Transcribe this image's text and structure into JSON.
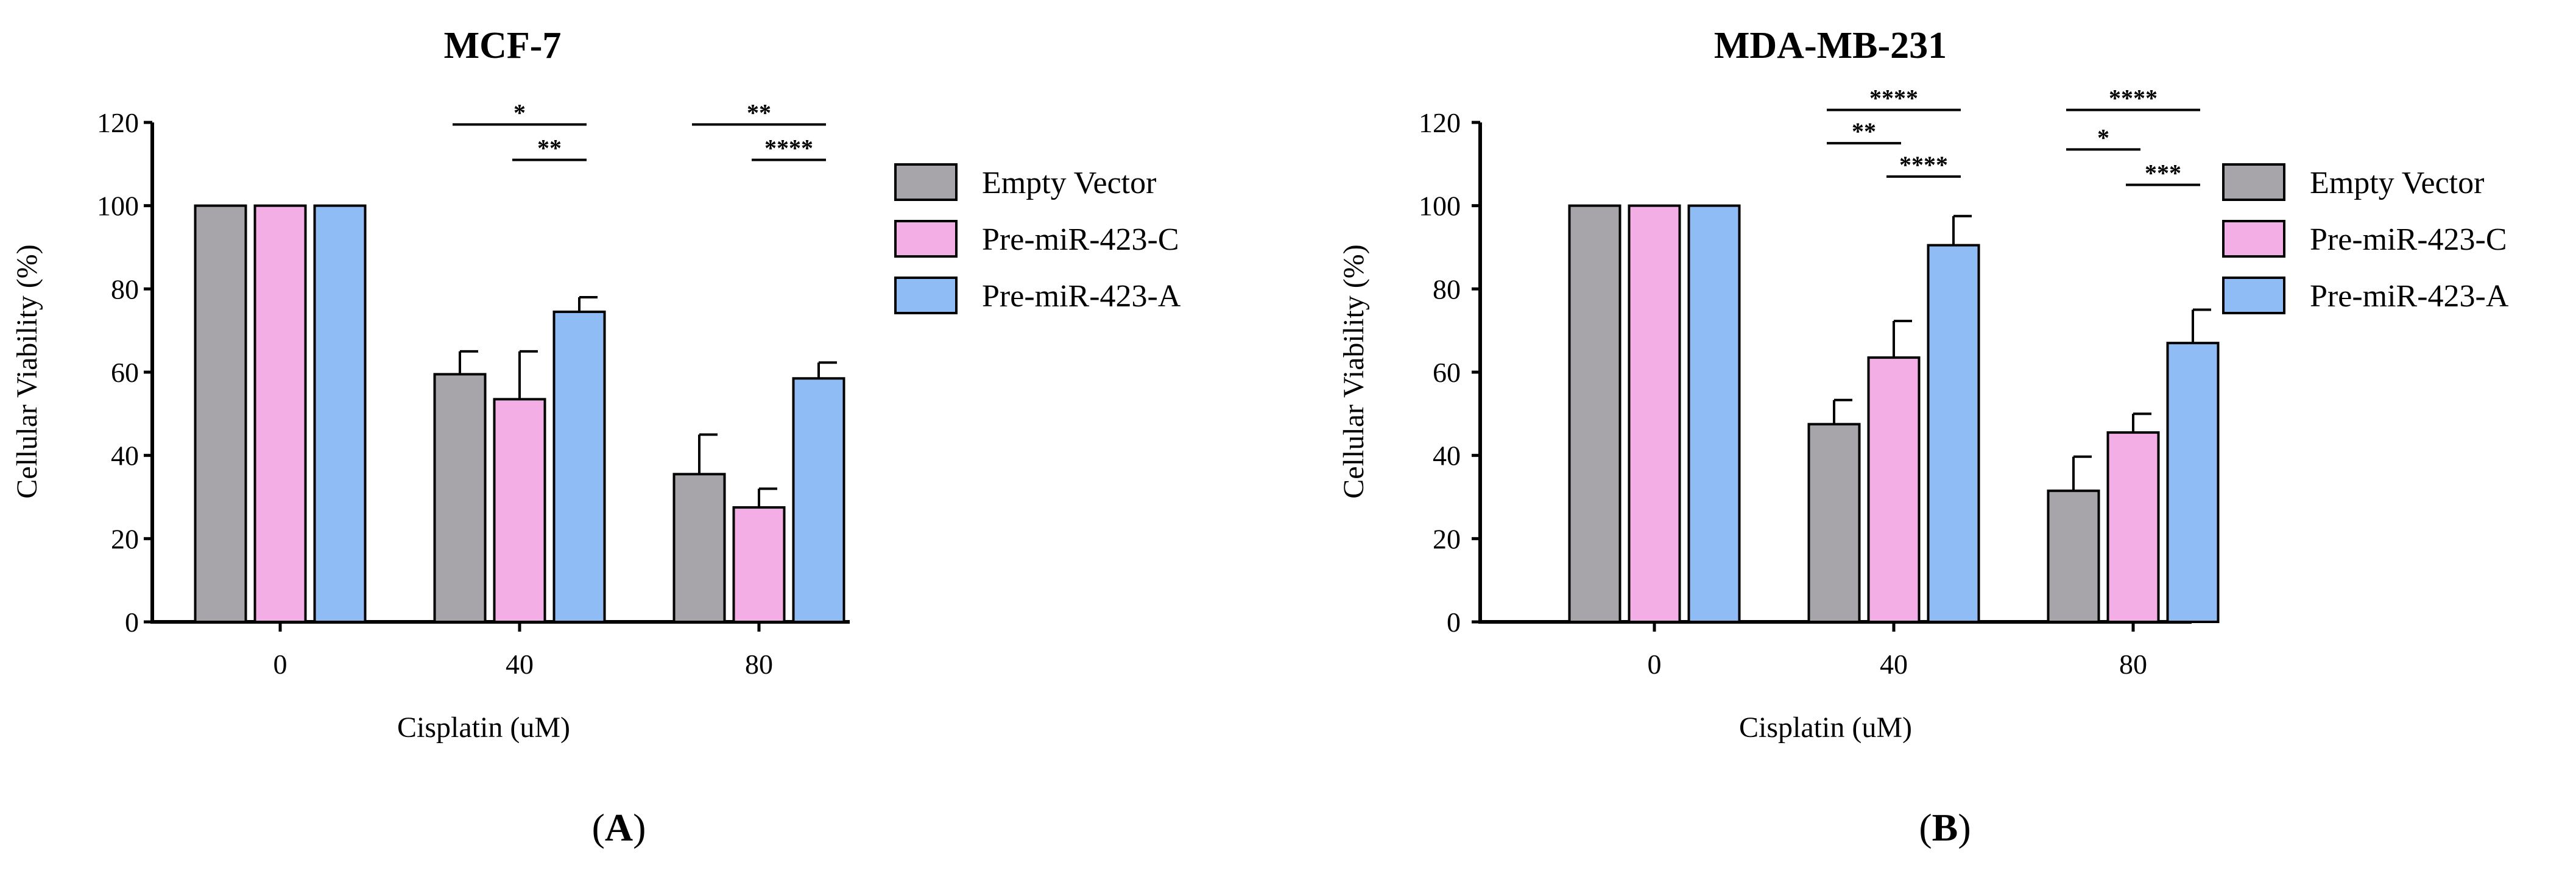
{
  "chart_data": [
    {
      "type": "bar",
      "panel": "A",
      "title": "MCF-7",
      "xlabel": "Cisplatin (uM)",
      "ylabel": "Cellular Viability (%)",
      "ylim": [
        0,
        120
      ],
      "yticks": [
        0,
        20,
        40,
        60,
        80,
        100,
        120
      ],
      "categories": [
        "0",
        "40",
        "80"
      ],
      "series": [
        {
          "name": "Empty Vector",
          "color": "#a7a5aa",
          "values": [
            100,
            59.5,
            35.5
          ],
          "errors": [
            0,
            5.5,
            9.5
          ]
        },
        {
          "name": "Pre-miR-423-C",
          "color": "#f3aee5",
          "values": [
            100,
            53.5,
            27.5
          ],
          "errors": [
            0,
            11.5,
            4.5
          ]
        },
        {
          "name": "Pre-miR-423-A",
          "color": "#8fbcf5",
          "values": [
            100,
            74.5,
            58.5
          ],
          "errors": [
            0,
            3.5,
            3.8
          ]
        }
      ],
      "significance": [
        {
          "group": 1,
          "from": 0,
          "to": 2,
          "y": 119.5,
          "label": "*"
        },
        {
          "group": 1,
          "from": 1,
          "to": 2,
          "y": 111,
          "label": "**"
        },
        {
          "group": 2,
          "from": 0,
          "to": 2,
          "y": 119.5,
          "label": "**"
        },
        {
          "group": 2,
          "from": 1,
          "to": 2,
          "y": 111,
          "label": "****"
        }
      ]
    },
    {
      "type": "bar",
      "panel": "B",
      "title": "MDA-MB-231",
      "xlabel": "Cisplatin (uM)",
      "ylabel": "Cellular Viability (%)",
      "ylim": [
        0,
        120
      ],
      "yticks": [
        0,
        20,
        40,
        60,
        80,
        100,
        120
      ],
      "categories": [
        "0",
        "40",
        "80"
      ],
      "series": [
        {
          "name": "Empty Vector",
          "color": "#a7a5aa",
          "values": [
            100,
            47.5,
            31.5
          ],
          "errors": [
            0,
            5.8,
            8.2
          ]
        },
        {
          "name": "Pre-miR-423-C",
          "color": "#f3aee5",
          "values": [
            100,
            63.5,
            45.5
          ],
          "errors": [
            0,
            8.8,
            4.5
          ]
        },
        {
          "name": "Pre-miR-423-A",
          "color": "#8fbcf5",
          "values": [
            100,
            90.5,
            67
          ],
          "errors": [
            0,
            7,
            8
          ]
        }
      ],
      "significance": [
        {
          "group": 1,
          "from": 0,
          "to": 2,
          "y": 123,
          "label": "****"
        },
        {
          "group": 1,
          "from": 0,
          "to": 1,
          "y": 115,
          "label": "**"
        },
        {
          "group": 1,
          "from": 1,
          "to": 2,
          "y": 107,
          "label": "****"
        },
        {
          "group": 2,
          "from": 0,
          "to": 2,
          "y": 123,
          "label": "****"
        },
        {
          "group": 2,
          "from": 0,
          "to": 1,
          "y": 113.5,
          "label": "*"
        },
        {
          "group": 2,
          "from": 1,
          "to": 2,
          "y": 105,
          "label": "***"
        }
      ]
    }
  ],
  "panel_labels": {
    "A": {
      "open": "(",
      "letter": "A",
      "close": ")"
    },
    "B": {
      "open": "(",
      "letter": "B",
      "close": ")"
    }
  }
}
